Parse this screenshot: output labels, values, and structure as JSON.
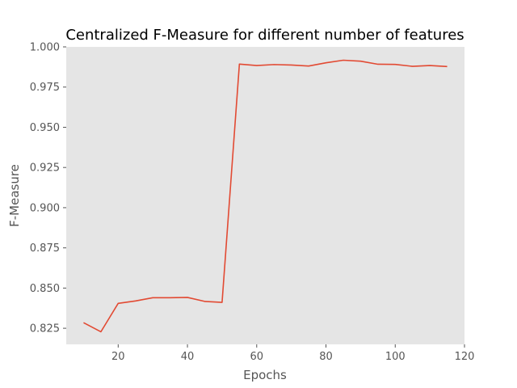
{
  "chart_data": {
    "type": "line",
    "title": "Centralized F-Measure for different number of features",
    "xlabel": "Epochs",
    "ylabel": "F-Measure",
    "xlim": [
      5,
      120
    ],
    "ylim": [
      0.815,
      1.0
    ],
    "xticks": [
      20,
      40,
      60,
      80,
      100,
      120
    ],
    "yticks": [
      0.825,
      0.85,
      0.875,
      0.9,
      0.925,
      0.95,
      0.975,
      1.0
    ],
    "xtick_labels": [
      "20",
      "40",
      "60",
      "80",
      "100",
      "120"
    ],
    "ytick_labels": [
      "0.825",
      "0.850",
      "0.875",
      "0.900",
      "0.925",
      "0.950",
      "0.975",
      "1.000"
    ],
    "grid": false,
    "background_color": "#e5e5e5",
    "series": [
      {
        "color": "#e24a33",
        "x": [
          10,
          15,
          20,
          25,
          30,
          35,
          40,
          45,
          50,
          55,
          60,
          65,
          70,
          75,
          80,
          85,
          90,
          95,
          100,
          105,
          110,
          115
        ],
        "y": [
          0.8285,
          0.8228,
          0.8405,
          0.842,
          0.844,
          0.844,
          0.8442,
          0.8417,
          0.8411,
          0.9893,
          0.9884,
          0.989,
          0.9887,
          0.9881,
          0.9901,
          0.9917,
          0.9911,
          0.9892,
          0.9891,
          0.9879,
          0.9884,
          0.9878
        ]
      }
    ]
  }
}
